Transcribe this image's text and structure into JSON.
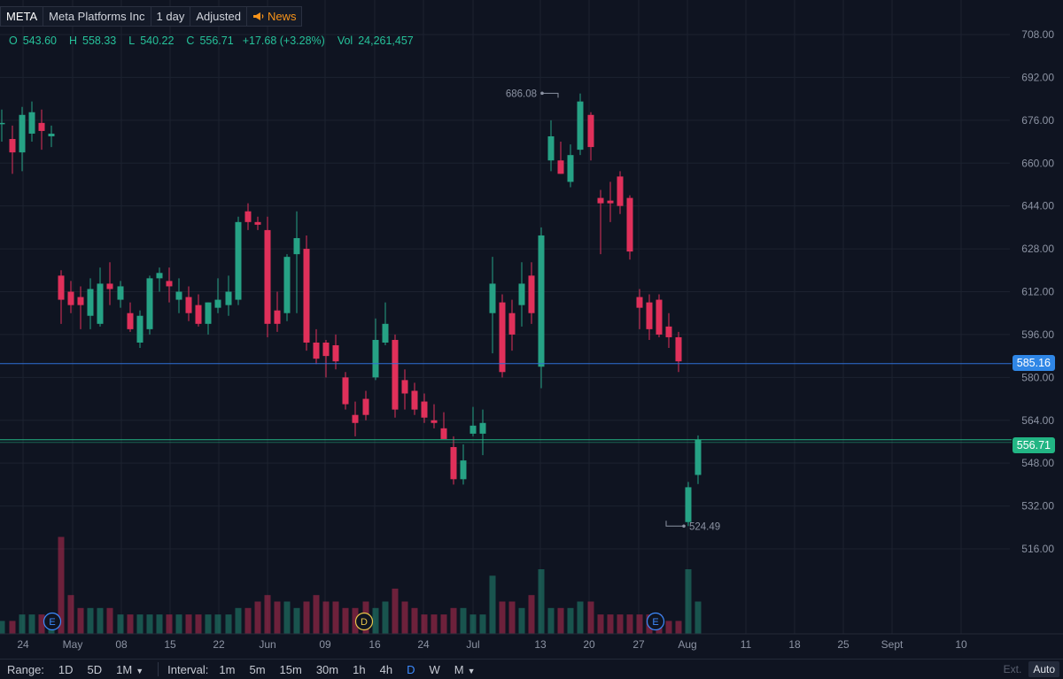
{
  "header": {
    "symbol": "META",
    "name": "Meta Platforms Inc",
    "interval": "1 day",
    "adjustment": "Adjusted",
    "news_label": "News"
  },
  "ohlc": {
    "o_label": "O",
    "o": "543.60",
    "h_label": "H",
    "h": "558.33",
    "l_label": "L",
    "l": "540.22",
    "c_label": "C",
    "c": "556.71",
    "change": "+17.68 (+3.28%)",
    "vol_label": "Vol",
    "vol": "24,261,457"
  },
  "badges": {
    "line_price": "585.16",
    "last_price": "556.71"
  },
  "colors": {
    "up": "#26a285",
    "down": "#e0305a",
    "line": "#2e6fd6",
    "last": "#22b584"
  },
  "toolbar": {
    "range_label": "Range:",
    "ranges": [
      "1D",
      "5D",
      "1M"
    ],
    "interval_label": "Interval:",
    "intervals": [
      "1m",
      "5m",
      "15m",
      "30m",
      "1h",
      "4h",
      "D",
      "W",
      "M"
    ],
    "active_interval": "D",
    "ext_label": "Ext.",
    "auto_label": "Auto"
  },
  "chart_data": {
    "type": "candlestick",
    "y_ticks": [
      "708.00",
      "692.00",
      "676.00",
      "660.00",
      "644.00",
      "628.00",
      "612.00",
      "596.00",
      "580.00",
      "564.00",
      "548.00",
      "532.00",
      "516.00"
    ],
    "x_ticks": [
      "24",
      "May",
      "08",
      "15",
      "22",
      "Jun",
      "09",
      "16",
      "24",
      "Jul",
      "13",
      "20",
      "27",
      "Aug",
      "11",
      "18",
      "25",
      "Sept",
      "10"
    ],
    "ylim": [
      500,
      712
    ],
    "hlines": [
      585.16,
      556.71
    ],
    "annotations": [
      {
        "text": "686.08",
        "price": 686.08
      },
      {
        "text": "524.49",
        "price": 524.49
      }
    ],
    "events": [
      "E",
      "D",
      "E"
    ],
    "candles": [
      {
        "o": 675,
        "h": 680,
        "l": 668,
        "c": 675
      },
      {
        "o": 669,
        "h": 674,
        "l": 656,
        "c": 664
      },
      {
        "o": 664,
        "h": 681,
        "l": 657,
        "c": 678
      },
      {
        "o": 671,
        "h": 683,
        "l": 668,
        "c": 679
      },
      {
        "o": 675,
        "h": 680,
        "l": 665,
        "c": 672
      },
      {
        "o": 670,
        "h": 674,
        "l": 666,
        "c": 671
      },
      {
        "o": 618,
        "h": 620,
        "l": 600,
        "c": 609
      },
      {
        "o": 612,
        "h": 616,
        "l": 604,
        "c": 607
      },
      {
        "o": 610,
        "h": 614,
        "l": 598,
        "c": 607
      },
      {
        "o": 603,
        "h": 617,
        "l": 598,
        "c": 613
      },
      {
        "o": 600,
        "h": 621,
        "l": 599,
        "c": 615
      },
      {
        "o": 615,
        "h": 623,
        "l": 607,
        "c": 613
      },
      {
        "o": 609,
        "h": 616,
        "l": 606,
        "c": 614
      },
      {
        "o": 604,
        "h": 608,
        "l": 597,
        "c": 598
      },
      {
        "o": 593,
        "h": 605,
        "l": 591,
        "c": 603
      },
      {
        "o": 598,
        "h": 618,
        "l": 596,
        "c": 617
      },
      {
        "o": 617,
        "h": 621,
        "l": 612,
        "c": 619
      },
      {
        "o": 616,
        "h": 621,
        "l": 608,
        "c": 614
      },
      {
        "o": 609,
        "h": 617,
        "l": 604,
        "c": 612
      },
      {
        "o": 610,
        "h": 614,
        "l": 601,
        "c": 604
      },
      {
        "o": 607,
        "h": 611,
        "l": 599,
        "c": 600
      },
      {
        "o": 600,
        "h": 608,
        "l": 596,
        "c": 608
      },
      {
        "o": 606,
        "h": 617,
        "l": 604,
        "c": 609
      },
      {
        "o": 607,
        "h": 618,
        "l": 603,
        "c": 612
      },
      {
        "o": 609,
        "h": 640,
        "l": 607,
        "c": 638
      },
      {
        "o": 642,
        "h": 645,
        "l": 635,
        "c": 638
      },
      {
        "o": 638,
        "h": 640,
        "l": 635,
        "c": 637
      },
      {
        "o": 635,
        "h": 640,
        "l": 595,
        "c": 600
      },
      {
        "o": 605,
        "h": 612,
        "l": 597,
        "c": 600
      },
      {
        "o": 604,
        "h": 626,
        "l": 601,
        "c": 625
      },
      {
        "o": 626,
        "h": 642,
        "l": 604,
        "c": 632
      },
      {
        "o": 628,
        "h": 633,
        "l": 590,
        "c": 593
      },
      {
        "o": 593,
        "h": 598,
        "l": 585,
        "c": 587
      },
      {
        "o": 593,
        "h": 594,
        "l": 580,
        "c": 588
      },
      {
        "o": 592,
        "h": 596,
        "l": 583,
        "c": 586
      },
      {
        "o": 580,
        "h": 582,
        "l": 568,
        "c": 570
      },
      {
        "o": 566,
        "h": 571,
        "l": 558,
        "c": 563
      },
      {
        "o": 572,
        "h": 575,
        "l": 564,
        "c": 566
      },
      {
        "o": 580,
        "h": 602,
        "l": 579,
        "c": 594
      },
      {
        "o": 593,
        "h": 608,
        "l": 592,
        "c": 600
      },
      {
        "o": 594,
        "h": 596,
        "l": 565,
        "c": 568
      },
      {
        "o": 579,
        "h": 583,
        "l": 568,
        "c": 574
      },
      {
        "o": 575,
        "h": 578,
        "l": 566,
        "c": 568
      },
      {
        "o": 571,
        "h": 574,
        "l": 563,
        "c": 565
      },
      {
        "o": 564,
        "h": 570,
        "l": 561,
        "c": 563
      },
      {
        "o": 561,
        "h": 567,
        "l": 557,
        "c": 557
      },
      {
        "o": 554,
        "h": 558,
        "l": 540,
        "c": 542
      },
      {
        "o": 542,
        "h": 555,
        "l": 540,
        "c": 549
      },
      {
        "o": 559,
        "h": 569,
        "l": 558,
        "c": 562
      },
      {
        "o": 559,
        "h": 568,
        "l": 551,
        "c": 563
      },
      {
        "o": 604,
        "h": 625,
        "l": 589,
        "c": 615
      },
      {
        "o": 608,
        "h": 611,
        "l": 580,
        "c": 582
      },
      {
        "o": 604,
        "h": 609,
        "l": 590,
        "c": 596
      },
      {
        "o": 607,
        "h": 623,
        "l": 599,
        "c": 615
      },
      {
        "o": 618,
        "h": 623,
        "l": 600,
        "c": 604
      },
      {
        "o": 584,
        "h": 636,
        "l": 576,
        "c": 633
      },
      {
        "o": 661,
        "h": 676,
        "l": 657,
        "c": 670
      },
      {
        "o": 661,
        "h": 668,
        "l": 656,
        "c": 656
      },
      {
        "o": 653,
        "h": 667,
        "l": 651,
        "c": 663
      },
      {
        "o": 665,
        "h": 686,
        "l": 663,
        "c": 683
      },
      {
        "o": 678,
        "h": 679,
        "l": 661,
        "c": 666
      },
      {
        "o": 647,
        "h": 650,
        "l": 626,
        "c": 645
      },
      {
        "o": 646,
        "h": 653,
        "l": 638,
        "c": 645
      },
      {
        "o": 655,
        "h": 657,
        "l": 641,
        "c": 644
      },
      {
        "o": 647,
        "h": 648,
        "l": 624,
        "c": 627
      },
      {
        "o": 610,
        "h": 613,
        "l": 598,
        "c": 606
      },
      {
        "o": 608,
        "h": 611,
        "l": 594,
        "c": 598
      },
      {
        "o": 609,
        "h": 611,
        "l": 595,
        "c": 596
      },
      {
        "o": 599,
        "h": 604,
        "l": 591,
        "c": 595
      },
      {
        "o": 595,
        "h": 597,
        "l": 582,
        "c": 586
      },
      {
        "o": 526,
        "h": 541,
        "l": 524.49,
        "c": 539
      },
      {
        "o": 543.6,
        "h": 558.33,
        "l": 540.22,
        "c": 556.71
      }
    ],
    "volumes": [
      2,
      2,
      3,
      3,
      3,
      3,
      15,
      6,
      4,
      4,
      4,
      4,
      3,
      3,
      3,
      3,
      3,
      3,
      3,
      3,
      3,
      3,
      3,
      3,
      4,
      4,
      5,
      6,
      5,
      5,
      4,
      5,
      6,
      5,
      5,
      4,
      4,
      5,
      4,
      5,
      7,
      5,
      4,
      3,
      3,
      3,
      4,
      4,
      3,
      3,
      9,
      5,
      5,
      4,
      6,
      10,
      4,
      4,
      4,
      5,
      5,
      3,
      3,
      3,
      3,
      3,
      3,
      3,
      2,
      2,
      10,
      5
    ]
  }
}
